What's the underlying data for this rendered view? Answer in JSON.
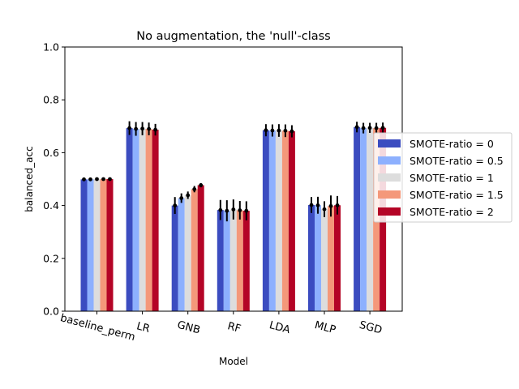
{
  "chart_data": {
    "type": "bar",
    "title": "No augmentation, the 'null'-class",
    "xlabel": "Model",
    "ylabel": "balanced_acc",
    "ylim": [
      0,
      1
    ],
    "yticks": [
      "0.0",
      "0.2",
      "0.4",
      "0.6",
      "0.8",
      "1.0"
    ],
    "ytick_values": [
      0,
      0.2,
      0.4,
      0.6,
      0.8,
      1.0
    ],
    "grid": false,
    "legend_position": "right, outside plot",
    "categories": [
      "baseline_perm",
      "LR",
      "GNB",
      "RF",
      "LDA",
      "MLP",
      "SGD"
    ],
    "series": [
      {
        "name": "SMOTE-ratio = 0",
        "color": "#3b4cc0",
        "values": [
          0.499,
          0.693,
          0.4,
          0.383,
          0.685,
          0.402,
          0.697
        ],
        "errors": [
          0.003,
          0.026,
          0.032,
          0.038,
          0.023,
          0.03,
          0.02
        ]
      },
      {
        "name": "SMOTE-ratio = 0.5",
        "color": "#8db0fe",
        "values": [
          0.499,
          0.69,
          0.428,
          0.38,
          0.684,
          0.401,
          0.693
        ],
        "errors": [
          0.003,
          0.026,
          0.018,
          0.04,
          0.023,
          0.032,
          0.02
        ]
      },
      {
        "name": "SMOTE-ratio = 1",
        "color": "#dddddd",
        "values": [
          0.5,
          0.691,
          0.439,
          0.385,
          0.684,
          0.386,
          0.694
        ],
        "errors": [
          0.003,
          0.025,
          0.014,
          0.038,
          0.024,
          0.03,
          0.019
        ]
      },
      {
        "name": "SMOTE-ratio = 1.5",
        "color": "#f4987a",
        "values": [
          0.5,
          0.69,
          0.462,
          0.382,
          0.683,
          0.398,
          0.693
        ],
        "errors": [
          0.003,
          0.024,
          0.012,
          0.035,
          0.024,
          0.04,
          0.02
        ]
      },
      {
        "name": "SMOTE-ratio = 2",
        "color": "#b40426",
        "values": [
          0.5,
          0.687,
          0.477,
          0.38,
          0.681,
          0.401,
          0.694
        ],
        "errors": [
          0.003,
          0.022,
          0.008,
          0.036,
          0.023,
          0.035,
          0.02
        ]
      }
    ]
  }
}
